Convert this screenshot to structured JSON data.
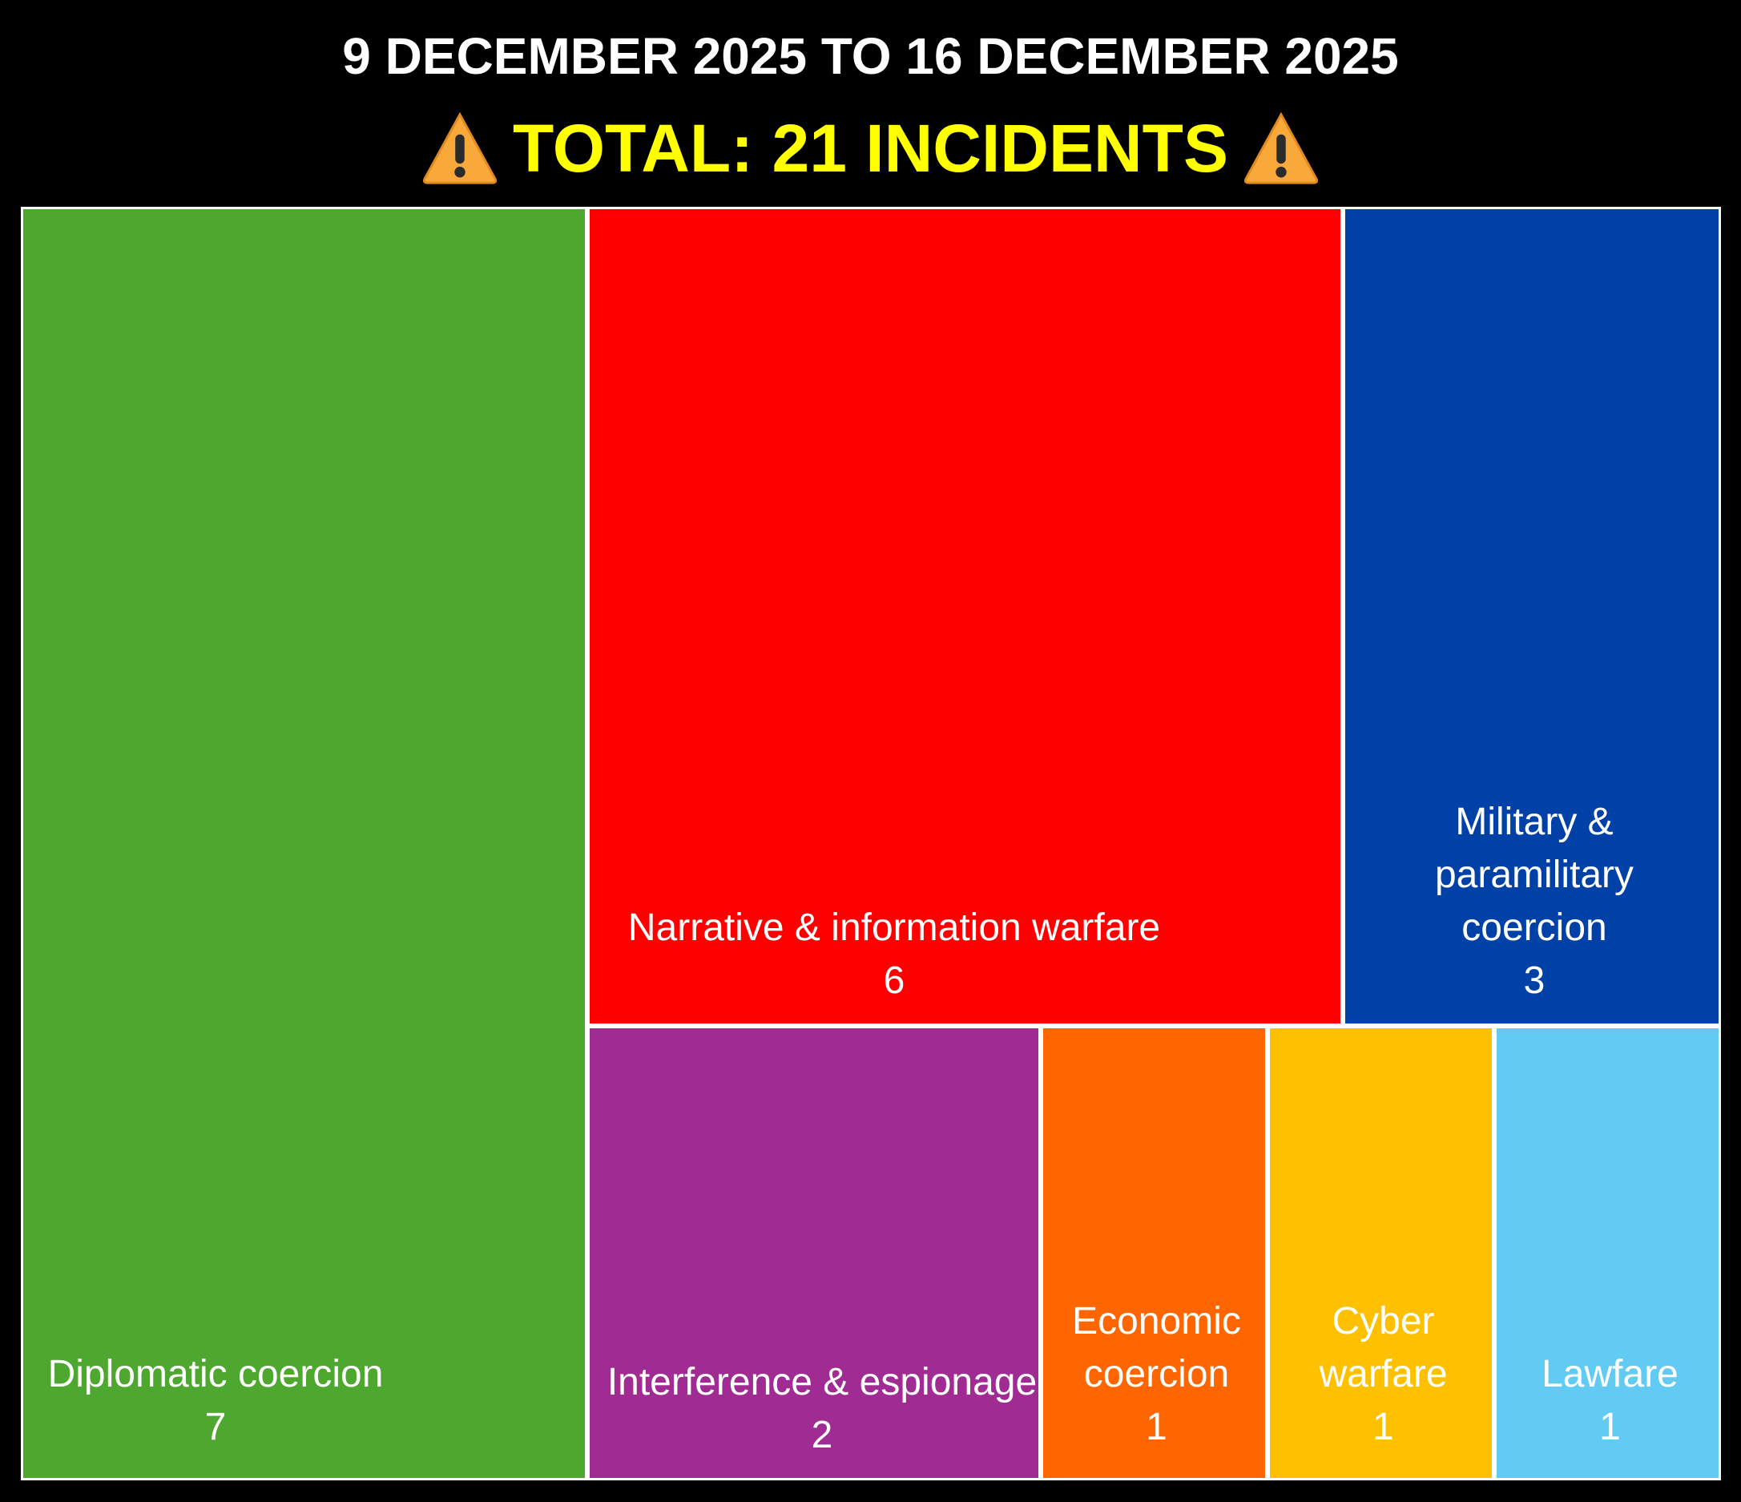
{
  "header": {
    "title": "9 DECEMBER 2025 TO 16 DECEMBER 2025",
    "subtitle": "TOTAL: 21 INCIDENTS",
    "subtitle_color": "#ffff00",
    "icon": "warning-icon"
  },
  "chart_data": {
    "type": "treemap",
    "title": "9 DECEMBER 2025 TO 16 DECEMBER 2025",
    "subtitle": "TOTAL: 21 INCIDENTS",
    "total": 21,
    "series": [
      {
        "name": "Diplomatic coercion",
        "value": 7,
        "color": "#4ea72e"
      },
      {
        "name": "Narrative & information warfare",
        "value": 6,
        "color": "#ff0000"
      },
      {
        "name": "Military & paramilitary coercion",
        "value": 3,
        "color": "#0041a8"
      },
      {
        "name": "Interference & espionage",
        "value": 2,
        "color": "#a02b93"
      },
      {
        "name": "Economic coercion",
        "value": 1,
        "color": "#ff6600"
      },
      {
        "name": "Cyber warfare",
        "value": 1,
        "color": "#ffc000"
      },
      {
        "name": "Lawfare",
        "value": 1,
        "color": "#61cbf3"
      }
    ]
  }
}
